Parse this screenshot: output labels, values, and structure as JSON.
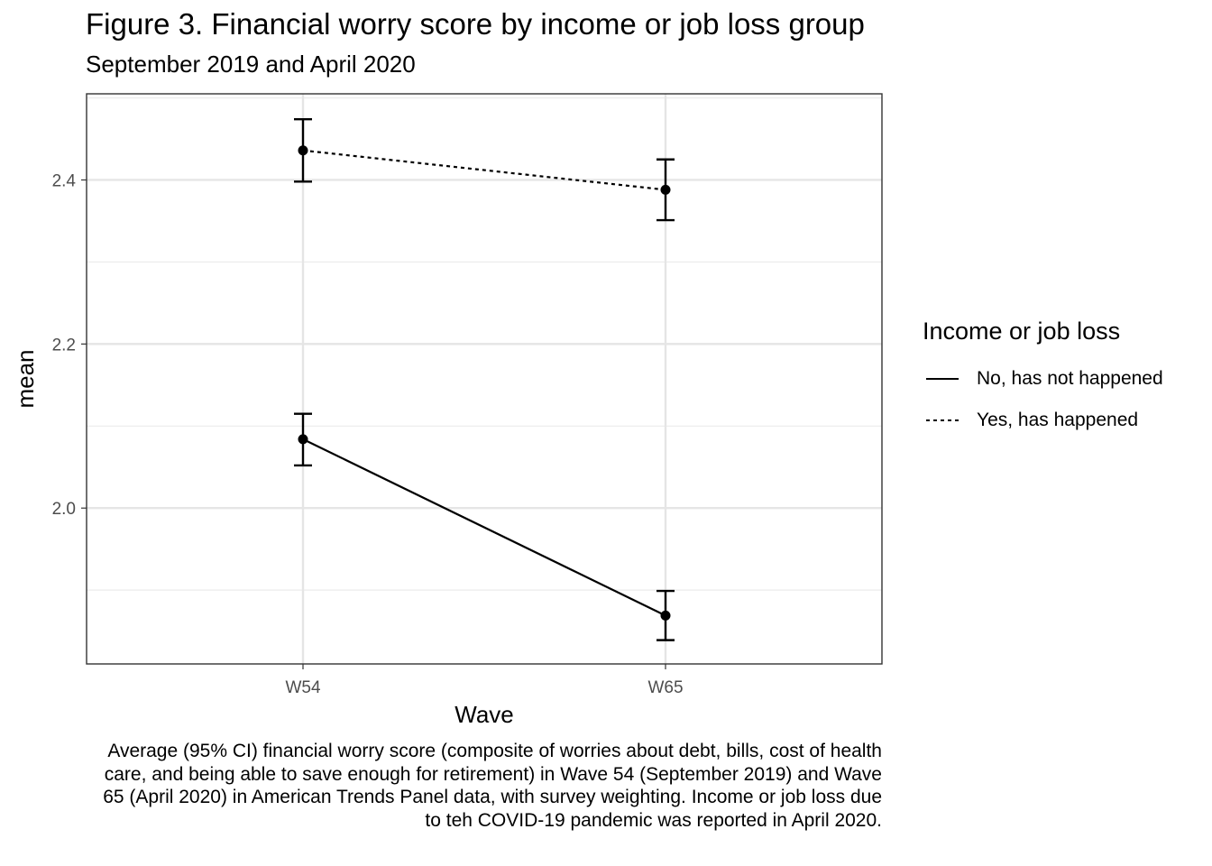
{
  "chart_data": {
    "type": "line",
    "title": "Figure 3. Financial worry score by income or job loss group",
    "subtitle": "September 2019 and April 2020",
    "xlabel": "Wave",
    "ylabel": "mean",
    "categories": [
      "W54",
      "W65"
    ],
    "yticks": [
      2.0,
      2.2,
      2.4
    ],
    "ytick_labels": [
      "2.0",
      "2.2",
      "2.4"
    ],
    "ylim": [
      1.81,
      2.505
    ],
    "grid": true,
    "legend": {
      "title": "Income or job loss",
      "placement": "right"
    },
    "series": [
      {
        "name": "No, has not happened",
        "linetype": "solid",
        "values": [
          2.084,
          1.869
        ],
        "ci_low": [
          2.052,
          1.839
        ],
        "ci_high": [
          2.115,
          1.899
        ]
      },
      {
        "name": "Yes, has happened",
        "linetype": "dotted",
        "values": [
          2.436,
          2.388
        ],
        "ci_low": [
          2.398,
          2.351
        ],
        "ci_high": [
          2.474,
          2.425
        ]
      }
    ],
    "caption": "Average (95% CI) financial worry score (composite of worries about debt, bills, cost of health care, and being able to save enough for retirement) in Wave 54 (September 2019) and Wave 65 (April 2020) in American Trends Panel data, with survey weighting. Income or job loss due to teh COVID-19 pandemic was reported in April 2020."
  }
}
